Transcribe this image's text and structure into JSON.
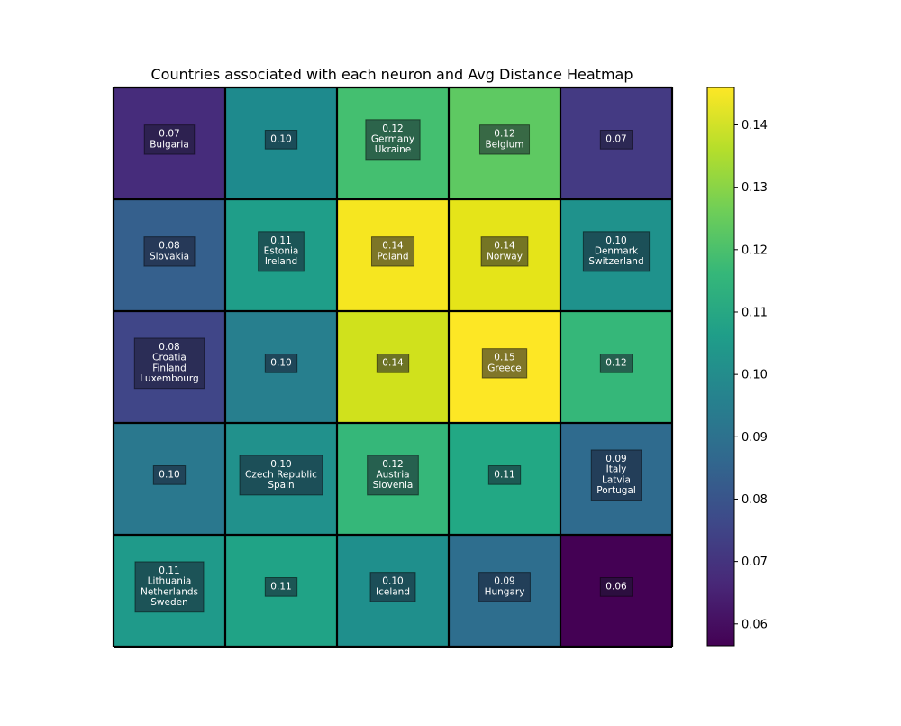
{
  "chart_data": {
    "type": "heatmap",
    "title": "Countries associated with each neuron and Avg Distance Heatmap",
    "rows": 5,
    "cols": 5,
    "grid": true,
    "cells": [
      [
        {
          "value": 0.07,
          "countries": [
            "Bulgaria"
          ],
          "color": "#462c7b"
        },
        {
          "value": 0.1,
          "countries": [],
          "color": "#1e8a8d"
        },
        {
          "value": 0.12,
          "countries": [
            "Germany",
            "Ukraine"
          ],
          "color": "#44bf70"
        },
        {
          "value": 0.12,
          "countries": [
            "Belgium"
          ],
          "color": "#5ec962"
        },
        {
          "value": 0.07,
          "countries": [],
          "color": "#443a83"
        }
      ],
      [
        {
          "value": 0.08,
          "countries": [
            "Slovakia"
          ],
          "color": "#35608d"
        },
        {
          "value": 0.11,
          "countries": [
            "Estonia",
            "Ireland"
          ],
          "color": "#1f9e89"
        },
        {
          "value": 0.14,
          "countries": [
            "Poland"
          ],
          "color": "#f6e620"
        },
        {
          "value": 0.14,
          "countries": [
            "Norway"
          ],
          "color": "#e5e419"
        },
        {
          "value": 0.1,
          "countries": [
            "Denmark",
            "Switzerland"
          ],
          "color": "#1f928c"
        }
      ],
      [
        {
          "value": 0.08,
          "countries": [
            "Croatia",
            "Finland",
            "Luxembourg"
          ],
          "color": "#404688"
        },
        {
          "value": 0.1,
          "countries": [],
          "color": "#277f8e"
        },
        {
          "value": 0.14,
          "countries": [],
          "color": "#d0e11c"
        },
        {
          "value": 0.15,
          "countries": [
            "Greece"
          ],
          "color": "#fde725"
        },
        {
          "value": 0.12,
          "countries": [],
          "color": "#35b779"
        }
      ],
      [
        {
          "value": 0.1,
          "countries": [],
          "color": "#2a788e"
        },
        {
          "value": 0.1,
          "countries": [
            "Czech Republic",
            "Spain"
          ],
          "color": "#21918c"
        },
        {
          "value": 0.12,
          "countries": [
            "Austria",
            "Slovenia"
          ],
          "color": "#35b779"
        },
        {
          "value": 0.11,
          "countries": [],
          "color": "#22a884"
        },
        {
          "value": 0.09,
          "countries": [
            "Italy",
            "Latvia",
            "Portugal"
          ],
          "color": "#2f6b8e"
        }
      ],
      [
        {
          "value": 0.11,
          "countries": [
            "Lithuania",
            "Netherlands",
            "Sweden"
          ],
          "color": "#1f9a8a"
        },
        {
          "value": 0.11,
          "countries": [],
          "color": "#20a386"
        },
        {
          "value": 0.1,
          "countries": [
            "Iceland"
          ],
          "color": "#1f8f8c"
        },
        {
          "value": 0.09,
          "countries": [
            "Hungary"
          ],
          "color": "#2e6e8e"
        },
        {
          "value": 0.06,
          "countries": [],
          "color": "#440154"
        }
      ]
    ],
    "colorbar": {
      "min": 0.0565,
      "max": 0.146,
      "ticks": [
        0.06,
        0.07,
        0.08,
        0.09,
        0.1,
        0.11,
        0.12,
        0.13,
        0.14
      ],
      "tick_labels": [
        "0.06",
        "0.07",
        "0.08",
        "0.09",
        "0.10",
        "0.11",
        "0.12",
        "0.13",
        "0.14"
      ],
      "colormap": [
        "#440154",
        "#482878",
        "#3e4989",
        "#31688e",
        "#26828e",
        "#1f9e89",
        "#35b779",
        "#6ece58",
        "#b5de2b",
        "#fde725"
      ]
    }
  }
}
